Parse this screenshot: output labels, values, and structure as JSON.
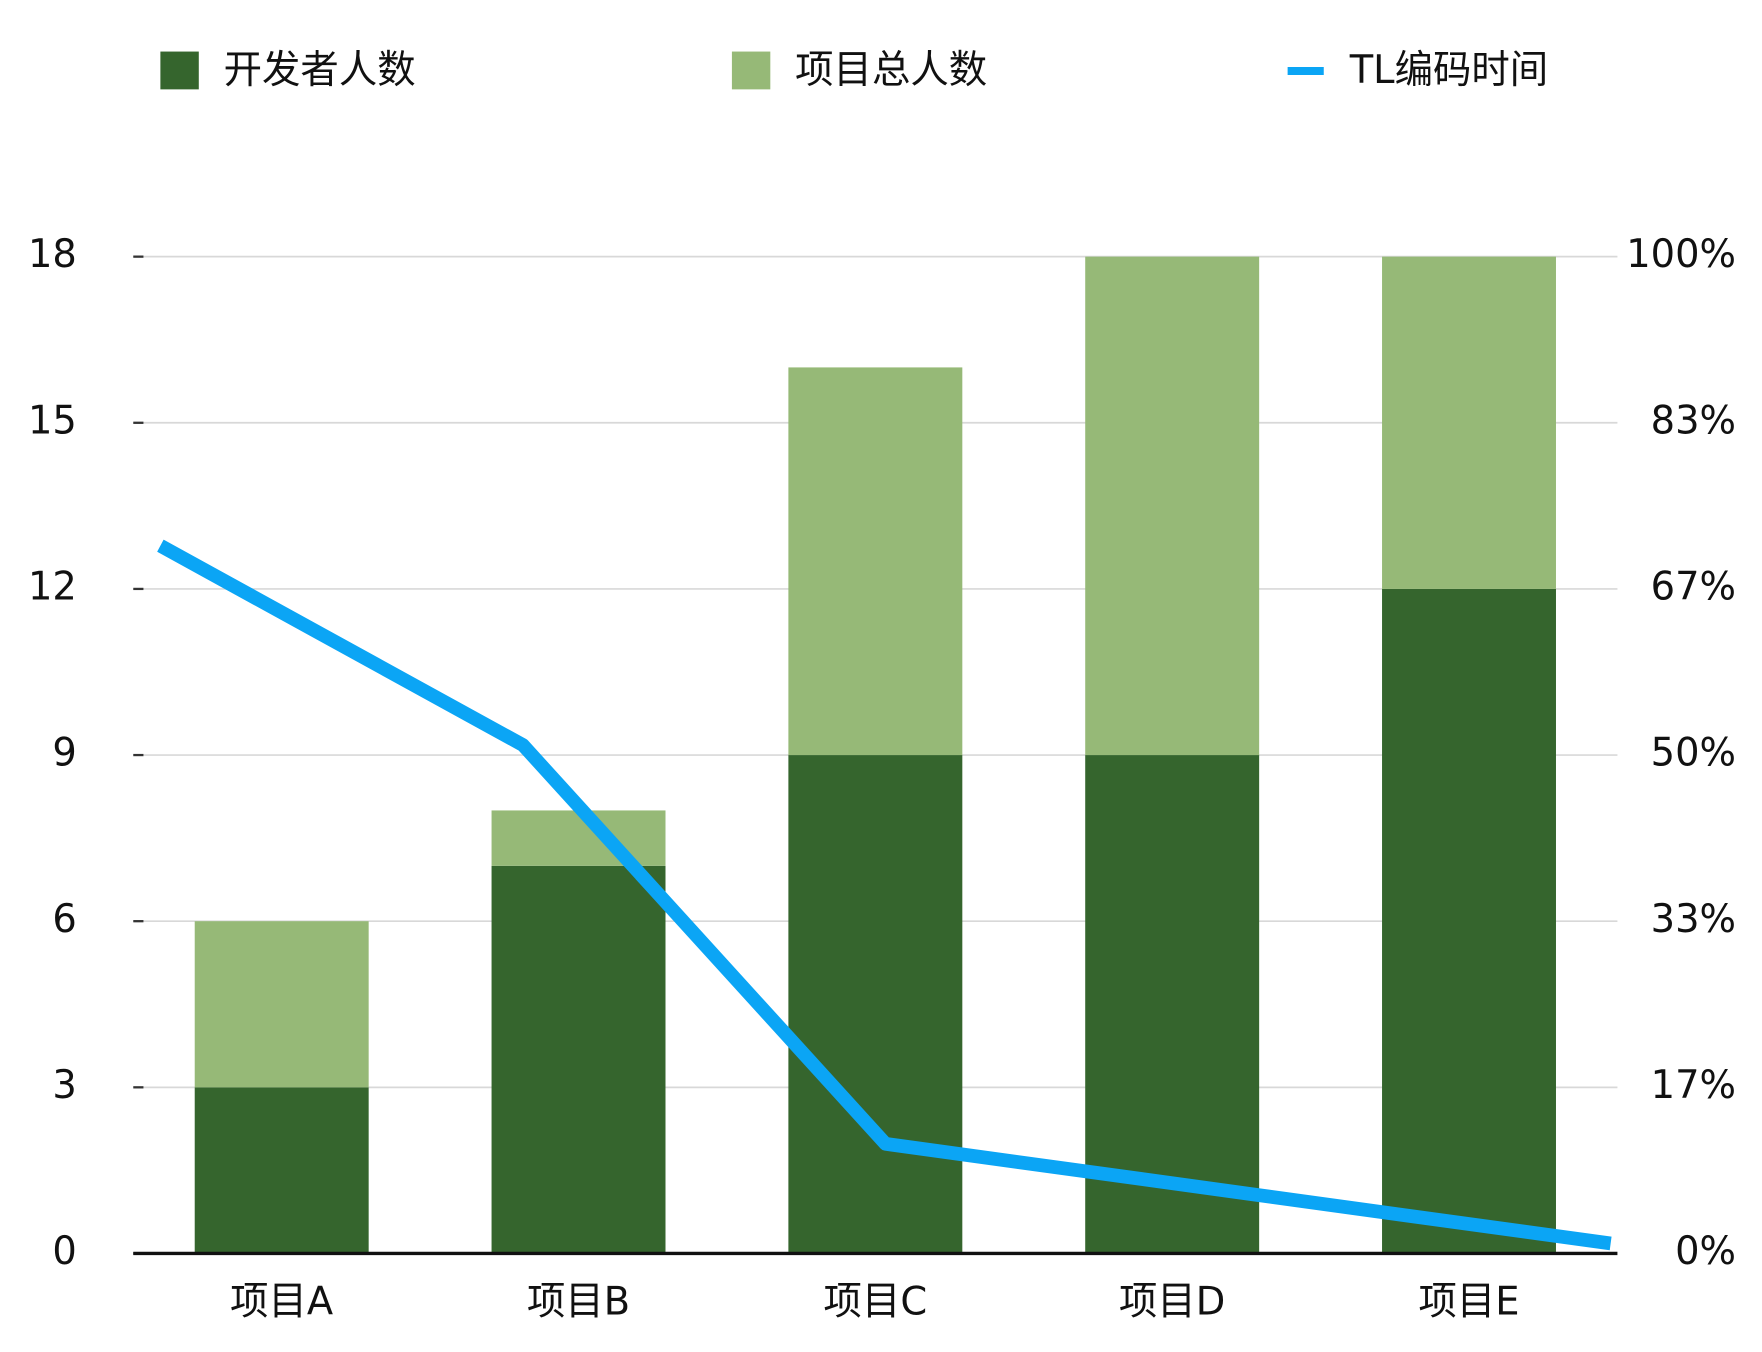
{
  "chart_data": {
    "type": "bar",
    "stacked": true,
    "categories": [
      "项目A",
      "项目B",
      "项目C",
      "项目D",
      "项目E"
    ],
    "series": [
      {
        "name": "开发者人数",
        "color": "#35652d",
        "values": [
          3,
          7,
          9,
          9,
          12
        ]
      },
      {
        "name": "项目总人数",
        "color": "#96b977",
        "values": [
          3,
          1,
          7,
          9,
          6
        ]
      },
      {
        "name": "TL编码时间",
        "type": "line",
        "axis": "y2",
        "color": "#0ba5f5",
        "values": [
          71,
          51,
          11,
          6,
          1
        ]
      }
    ],
    "ylim": [
      0,
      18
    ],
    "yticks": [
      0,
      3,
      6,
      9,
      12,
      15,
      18
    ],
    "y2lim": [
      0,
      100
    ],
    "y2ticks": [
      {
        "value": 0,
        "label": "0%"
      },
      {
        "value": 16.67,
        "label": "17%"
      },
      {
        "value": 33.33,
        "label": "33%"
      },
      {
        "value": 50,
        "label": "50%"
      },
      {
        "value": 66.67,
        "label": "67%"
      },
      {
        "value": 83.33,
        "label": "83%"
      },
      {
        "value": 100,
        "label": "100%"
      }
    ],
    "grid": true,
    "legend": "top"
  }
}
